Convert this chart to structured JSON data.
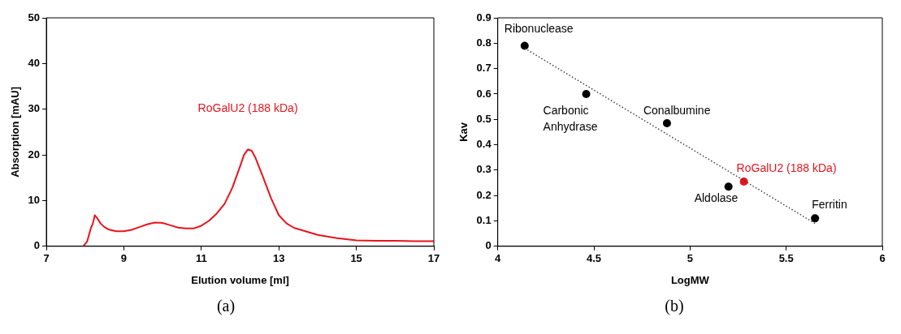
{
  "chart_data": [
    {
      "type": "line",
      "xlabel": "Elution volume [ml]",
      "ylabel": "Absorption [mAU]",
      "xlim": [
        7,
        17
      ],
      "xticks": [
        7,
        9,
        11,
        13,
        15,
        17
      ],
      "ylim": [
        0,
        50
      ],
      "yticks": [
        0,
        10,
        20,
        30,
        40,
        50
      ],
      "grid": false,
      "legend": false,
      "marker": "none",
      "annotations": [
        "(a)"
      ],
      "series": [
        {
          "name": "RoGalU2 (188 kDa)",
          "color": "#e8141c",
          "x": [
            7.95,
            8.05,
            8.15,
            8.2,
            8.25,
            8.3,
            8.4,
            8.5,
            8.6,
            8.8,
            9.0,
            9.2,
            9.4,
            9.6,
            9.8,
            10.0,
            10.2,
            10.4,
            10.6,
            10.8,
            11.0,
            11.2,
            11.4,
            11.6,
            11.8,
            12.0,
            12.1,
            12.2,
            12.3,
            12.4,
            12.6,
            12.8,
            13.0,
            13.2,
            13.4,
            13.6,
            14.0,
            14.5,
            15.0,
            15.5,
            16.0,
            16.5,
            17.0
          ],
          "values": [
            0,
            1,
            4,
            5,
            6.8,
            6.3,
            5,
            4.2,
            3.7,
            3.3,
            3.3,
            3.6,
            4.2,
            4.8,
            5.2,
            5.1,
            4.6,
            4.1,
            3.9,
            3.9,
            4.5,
            5.6,
            7.2,
            9.3,
            12.8,
            17.5,
            20,
            21.2,
            20.9,
            19.3,
            15,
            10.5,
            6.8,
            5,
            4,
            3.5,
            2.5,
            1.8,
            1.3,
            1.2,
            1.2,
            1.1,
            1.1
          ]
        }
      ]
    },
    {
      "type": "scatter",
      "xlabel": "LogMW",
      "ylabel": "Kav",
      "xlim": [
        4,
        6
      ],
      "xticks": [
        4,
        4.5,
        5,
        5.5,
        6
      ],
      "ylim": [
        0,
        0.9
      ],
      "yticks": [
        0,
        0.1,
        0.2,
        0.3,
        0.4,
        0.5,
        0.6,
        0.7,
        0.8,
        0.9
      ],
      "grid": false,
      "legend": false,
      "marker": "circle",
      "annotations": [
        "(b)",
        {
          "text": "Ribonuclease",
          "x": 4.14,
          "y": 0.79
        },
        {
          "text": "Carbonic Anhydrase",
          "x": 4.46,
          "y": 0.6
        },
        {
          "text": "Conalbumine",
          "x": 4.88,
          "y": 0.485
        },
        {
          "text": "Aldolase",
          "x": 5.2,
          "y": 0.235
        },
        {
          "text": "Ferritin",
          "x": 5.65,
          "y": 0.11
        }
      ],
      "series": [
        {
          "type": "line",
          "color": "#404040",
          "line_style": "dotted",
          "marker": "none",
          "x": [
            4.14,
            5.65
          ],
          "values": [
            0.78,
            0.09
          ]
        },
        {
          "color": "#000000",
          "x": [
            4.14,
            4.46,
            4.88,
            5.2,
            5.65
          ],
          "values": [
            0.79,
            0.6,
            0.485,
            0.235,
            0.11
          ]
        },
        {
          "name": "RoGalU2 (188 kDa)",
          "color": "#e8141c",
          "x": [
            5.28
          ],
          "values": [
            0.255
          ]
        }
      ]
    }
  ]
}
